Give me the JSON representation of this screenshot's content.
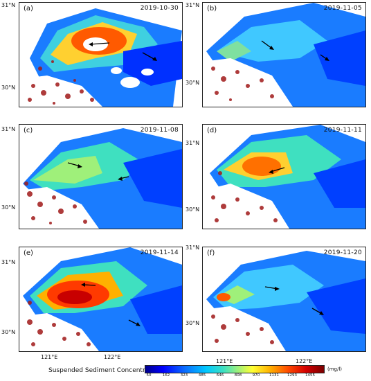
{
  "panels": [
    {
      "label": "(a)",
      "date": "2019-10-30",
      "y_labels": [
        "31°N",
        "30°N"
      ],
      "x_labels": []
    },
    {
      "label": "(b)",
      "date": "2019-11-05",
      "y_labels": [
        "31°N",
        "30°N"
      ],
      "x_labels": []
    },
    {
      "label": "(c)",
      "date": "2019-11-08",
      "y_labels": [
        "31°N",
        "30°N"
      ],
      "x_labels": []
    },
    {
      "label": "(d)",
      "date": "2019-11-11",
      "y_labels": [
        "31°N",
        "30°N"
      ],
      "x_labels": []
    },
    {
      "label": "(e)",
      "date": "2019-11-14",
      "y_labels": [
        "31°N",
        "30°N"
      ],
      "x_labels": [
        "121°E",
        "122°E"
      ]
    },
    {
      "label": "(f)",
      "date": "2019-11-20",
      "y_labels": [
        "31°N",
        "30°N"
      ],
      "x_labels": [
        "121°E",
        "122°E"
      ]
    }
  ],
  "colorbar": {
    "title": "Suspended Sediment Concentration:",
    "ticks": [
      "50",
      "162",
      "323",
      "485",
      "646",
      "808",
      "970",
      "1131",
      "1293",
      "1455"
    ],
    "unit": "(mg/l)",
    "colors": [
      "#00008c",
      "#0000ff",
      "#0a6cff",
      "#00c8ff",
      "#3fe0c0",
      "#9ff07a",
      "#ffff33",
      "#ffb000",
      "#ff4a00",
      "#d40000",
      "#7a0000"
    ]
  }
}
